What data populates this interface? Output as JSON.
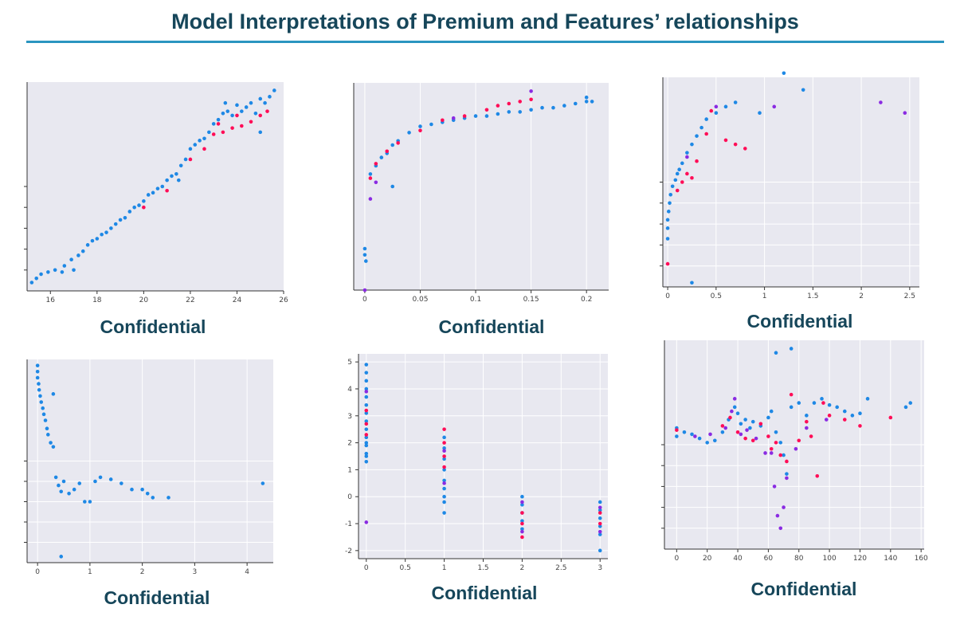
{
  "page": {
    "title": "Model Interpretations of Premium and Features’ relationships"
  },
  "colors": {
    "title": "#16465a",
    "rule": "#2a95c0",
    "plot_bg": "#e8e8f0",
    "grid": "#ffffff",
    "blue": "#1e88e5",
    "pink": "#ff0d57",
    "purple": "#8a2be2"
  },
  "chart_data": [
    {
      "type": "scatter",
      "caption": "Confidential",
      "xlim": [
        15,
        26
      ],
      "ylim": [
        0,
        10
      ],
      "xticks": [
        16,
        18,
        20,
        22,
        24,
        26
      ],
      "yticks": [
        1,
        2,
        3,
        4,
        5
      ],
      "show_xtick_labels": true,
      "grid": false,
      "series": [
        {
          "color_key": "blue",
          "x": [
            15.2,
            15.4,
            15.6,
            15.9,
            16.2,
            16.6,
            16.9,
            17.2,
            17.4,
            17.6,
            17.8,
            18.0,
            18.2,
            18.4,
            18.6,
            18.8,
            19.0,
            19.2,
            19.4,
            19.6,
            19.8,
            20.0,
            20.2,
            20.4,
            20.6,
            20.8,
            21.0,
            21.2,
            21.4,
            21.6,
            21.8,
            22.0,
            22.2,
            22.4,
            22.6,
            22.8,
            23.0,
            23.2,
            23.4,
            23.6,
            23.8,
            24.0,
            24.2,
            24.4,
            24.6,
            24.8,
            25.0,
            25.2,
            25.4,
            25.6,
            21.5,
            16.5,
            17.0,
            23.5,
            25.0
          ],
          "y": [
            0.4,
            0.6,
            0.8,
            0.9,
            1.0,
            1.2,
            1.5,
            1.7,
            1.9,
            2.2,
            2.4,
            2.5,
            2.7,
            2.8,
            3.0,
            3.2,
            3.4,
            3.5,
            3.8,
            4.0,
            4.1,
            4.3,
            4.6,
            4.7,
            4.9,
            5.0,
            5.3,
            5.5,
            5.6,
            6.0,
            6.3,
            6.8,
            7.0,
            7.2,
            7.3,
            7.6,
            8.0,
            8.2,
            8.5,
            8.6,
            8.4,
            8.9,
            8.6,
            8.8,
            9.0,
            8.5,
            9.2,
            9.0,
            9.3,
            9.6,
            5.3,
            0.9,
            1.0,
            9.0,
            7.6
          ]
        },
        {
          "color_key": "pink",
          "x": [
            20.0,
            21.0,
            22.0,
            22.6,
            23.0,
            23.4,
            23.8,
            24.2,
            24.6,
            25.0,
            25.3,
            24.0,
            23.2
          ],
          "y": [
            4.0,
            4.8,
            6.3,
            6.8,
            7.5,
            7.6,
            7.8,
            7.9,
            8.1,
            8.4,
            8.6,
            8.4,
            8.0
          ]
        }
      ]
    },
    {
      "type": "scatter",
      "caption": "Confidential",
      "xlim": [
        -0.01,
        0.22
      ],
      "ylim": [
        0,
        10
      ],
      "xticks": [
        0.0,
        0.05,
        0.1,
        0.15,
        0.2
      ],
      "yticks": [],
      "show_xtick_labels": true,
      "grid": true,
      "series": [
        {
          "color_key": "blue",
          "x": [
            0.0,
            0.0,
            0.001,
            0.005,
            0.01,
            0.015,
            0.02,
            0.025,
            0.03,
            0.04,
            0.05,
            0.06,
            0.07,
            0.08,
            0.09,
            0.1,
            0.11,
            0.12,
            0.13,
            0.14,
            0.15,
            0.16,
            0.17,
            0.18,
            0.19,
            0.2,
            0.2,
            0.205,
            0.025
          ],
          "y": [
            2.0,
            1.7,
            1.4,
            5.6,
            6.0,
            6.4,
            6.6,
            7.0,
            7.2,
            7.6,
            7.9,
            8.0,
            8.1,
            8.2,
            8.3,
            8.4,
            8.4,
            8.5,
            8.6,
            8.6,
            8.7,
            8.8,
            8.8,
            8.9,
            9.0,
            9.1,
            9.3,
            9.1,
            5.0
          ]
        },
        {
          "color_key": "pink",
          "x": [
            0.005,
            0.01,
            0.02,
            0.03,
            0.05,
            0.07,
            0.09,
            0.11,
            0.12,
            0.13,
            0.14,
            0.15
          ],
          "y": [
            5.4,
            6.1,
            6.7,
            7.1,
            7.7,
            8.2,
            8.4,
            8.7,
            8.9,
            9.0,
            9.1,
            9.2
          ]
        },
        {
          "color_key": "purple",
          "x": [
            0.0,
            0.005,
            0.01,
            0.08,
            0.15
          ],
          "y": [
            0.0,
            4.4,
            5.2,
            8.3,
            9.6
          ]
        }
      ]
    },
    {
      "type": "scatter",
      "caption": "Confidential",
      "xlim": [
        -0.05,
        2.6
      ],
      "ylim": [
        0,
        10
      ],
      "xticks": [
        0.0,
        0.5,
        1.0,
        1.5,
        2.0,
        2.5
      ],
      "yticks": [
        1,
        2,
        3,
        4,
        5
      ],
      "show_xtick_labels": true,
      "grid": true,
      "series": [
        {
          "color_key": "blue",
          "x": [
            0.0,
            0.0,
            0.0,
            0.01,
            0.02,
            0.03,
            0.05,
            0.08,
            0.1,
            0.12,
            0.15,
            0.2,
            0.25,
            0.3,
            0.35,
            0.4,
            0.5,
            0.6,
            0.7,
            0.95,
            1.2,
            1.4,
            0.25
          ],
          "y": [
            2.3,
            2.8,
            3.2,
            3.6,
            4.0,
            4.4,
            4.8,
            5.1,
            5.4,
            5.6,
            5.9,
            6.4,
            6.8,
            7.2,
            7.6,
            8.0,
            8.3,
            8.6,
            8.8,
            8.3,
            10.2,
            9.4,
            0.2
          ]
        },
        {
          "color_key": "pink",
          "x": [
            0.0,
            0.1,
            0.15,
            0.2,
            0.25,
            0.3,
            0.4,
            0.45,
            0.6,
            0.7,
            0.8
          ],
          "y": [
            1.1,
            4.6,
            5.0,
            5.4,
            5.2,
            6.0,
            7.3,
            8.4,
            7.0,
            6.8,
            6.6
          ]
        },
        {
          "color_key": "purple",
          "x": [
            0.2,
            0.5,
            1.1,
            2.2,
            2.45
          ],
          "y": [
            6.2,
            8.6,
            8.6,
            8.8,
            8.3
          ]
        }
      ]
    },
    {
      "type": "scatter",
      "caption": "Confidential",
      "xlim": [
        -0.2,
        4.5
      ],
      "ylim": [
        0,
        10
      ],
      "xticks": [
        0,
        1,
        2,
        3,
        4
      ],
      "yticks": [
        1,
        2,
        3,
        4,
        5
      ],
      "show_xtick_labels": true,
      "grid": true,
      "series": [
        {
          "color_key": "blue",
          "x": [
            0.0,
            0.0,
            0.0,
            0.02,
            0.03,
            0.05,
            0.07,
            0.1,
            0.12,
            0.15,
            0.18,
            0.2,
            0.25,
            0.3,
            0.35,
            0.4,
            0.45,
            0.5,
            0.6,
            0.7,
            0.8,
            0.9,
            1.0,
            1.1,
            1.2,
            1.4,
            1.6,
            1.8,
            2.0,
            2.1,
            2.2,
            2.5,
            4.3,
            0.45,
            0.3
          ],
          "y": [
            9.7,
            9.4,
            9.1,
            8.8,
            8.5,
            8.2,
            7.9,
            7.6,
            7.3,
            7.0,
            6.6,
            6.3,
            5.9,
            5.7,
            4.2,
            3.8,
            3.5,
            4.0,
            3.4,
            3.6,
            3.9,
            3.0,
            3.0,
            4.0,
            4.2,
            4.1,
            3.9,
            3.6,
            3.6,
            3.4,
            3.2,
            3.2,
            3.9,
            0.3,
            8.3
          ]
        }
      ]
    },
    {
      "type": "scatter",
      "caption": "Confidential",
      "xlim": [
        -0.1,
        3.1
      ],
      "ylim": [
        -2.3,
        5.3
      ],
      "xticks": [
        0.0,
        0.5,
        1.0,
        1.5,
        2.0,
        2.5,
        3.0
      ],
      "yticks": [
        -2,
        -1,
        0,
        1,
        2,
        3,
        4,
        5
      ],
      "show_xtick_labels": true,
      "show_ytick_labels": true,
      "grid": true,
      "series": [
        {
          "color_key": "blue",
          "x": [
            0,
            0,
            0,
            0,
            0,
            0,
            0,
            0,
            0,
            0,
            0,
            0,
            0,
            0,
            0,
            1,
            1,
            1,
            1,
            1,
            1,
            1,
            1,
            1,
            2,
            2,
            2,
            2,
            2,
            3,
            3,
            3,
            3,
            3,
            3
          ],
          "y": [
            4.9,
            4.6,
            4.3,
            4.0,
            3.7,
            3.4,
            3.1,
            2.8,
            2.5,
            2.2,
            1.9,
            1.6,
            1.3,
            1.5,
            2.0,
            2.2,
            1.8,
            1.4,
            1.0,
            0.6,
            0.3,
            0.0,
            -0.2,
            -0.6,
            0.0,
            -0.3,
            -0.6,
            -0.9,
            -1.2,
            -0.2,
            -0.5,
            -0.8,
            -1.1,
            -1.4,
            -2.0
          ]
        },
        {
          "color_key": "pink",
          "x": [
            0,
            0,
            0,
            1,
            1,
            1,
            1,
            2,
            2,
            2,
            3,
            3
          ],
          "y": [
            3.2,
            2.7,
            2.3,
            2.5,
            2.0,
            1.5,
            1.1,
            -0.6,
            -1.0,
            -1.5,
            -0.6,
            -1.0
          ]
        },
        {
          "color_key": "purple",
          "x": [
            0,
            0,
            1,
            1,
            2,
            2,
            3,
            3
          ],
          "y": [
            -0.95,
            3.9,
            1.7,
            0.5,
            -0.2,
            -1.3,
            -0.4,
            -1.3
          ]
        }
      ]
    },
    {
      "type": "scatter",
      "caption": "Confidential",
      "xlim": [
        -8,
        162
      ],
      "ylim": [
        0,
        10
      ],
      "xticks": [
        0,
        20,
        40,
        60,
        80,
        100,
        120,
        140,
        160
      ],
      "yticks": [
        1,
        2,
        3,
        4,
        5
      ],
      "show_xtick_labels": true,
      "grid": true,
      "series": [
        {
          "color_key": "blue",
          "x": [
            0,
            0,
            5,
            10,
            15,
            20,
            25,
            30,
            34,
            38,
            40,
            42,
            45,
            48,
            50,
            55,
            60,
            62,
            65,
            68,
            70,
            72,
            75,
            80,
            85,
            90,
            95,
            100,
            105,
            110,
            115,
            120,
            125,
            150,
            153,
            65,
            75
          ],
          "y": [
            5.8,
            5.4,
            5.6,
            5.5,
            5.3,
            5.1,
            5.2,
            5.6,
            6.2,
            6.8,
            6.5,
            6.0,
            6.2,
            5.8,
            6.1,
            5.9,
            6.3,
            6.6,
            5.6,
            5.1,
            4.5,
            3.6,
            6.8,
            7.0,
            6.4,
            7.0,
            7.2,
            6.9,
            6.8,
            6.6,
            6.4,
            6.5,
            7.2,
            6.8,
            7.0,
            9.4,
            9.6
          ]
        },
        {
          "color_key": "pink",
          "x": [
            0,
            30,
            35,
            40,
            45,
            50,
            55,
            60,
            62,
            65,
            68,
            72,
            75,
            80,
            85,
            88,
            92,
            96,
            100,
            110,
            120,
            140
          ],
          "y": [
            5.7,
            5.9,
            6.3,
            5.6,
            5.3,
            5.2,
            6.0,
            5.4,
            4.8,
            5.1,
            4.5,
            4.2,
            7.4,
            5.2,
            6.1,
            5.4,
            3.5,
            7.0,
            6.4,
            6.2,
            5.9,
            6.3
          ]
        },
        {
          "color_key": "purple",
          "x": [
            12,
            22,
            32,
            36,
            38,
            42,
            46,
            52,
            58,
            62,
            64,
            66,
            68,
            70,
            72,
            78,
            85,
            98
          ],
          "y": [
            5.4,
            5.5,
            5.8,
            6.6,
            7.2,
            5.5,
            5.7,
            5.3,
            4.6,
            4.6,
            3.0,
            1.6,
            1.0,
            2.0,
            3.4,
            4.8,
            5.8,
            6.2
          ]
        }
      ]
    }
  ]
}
